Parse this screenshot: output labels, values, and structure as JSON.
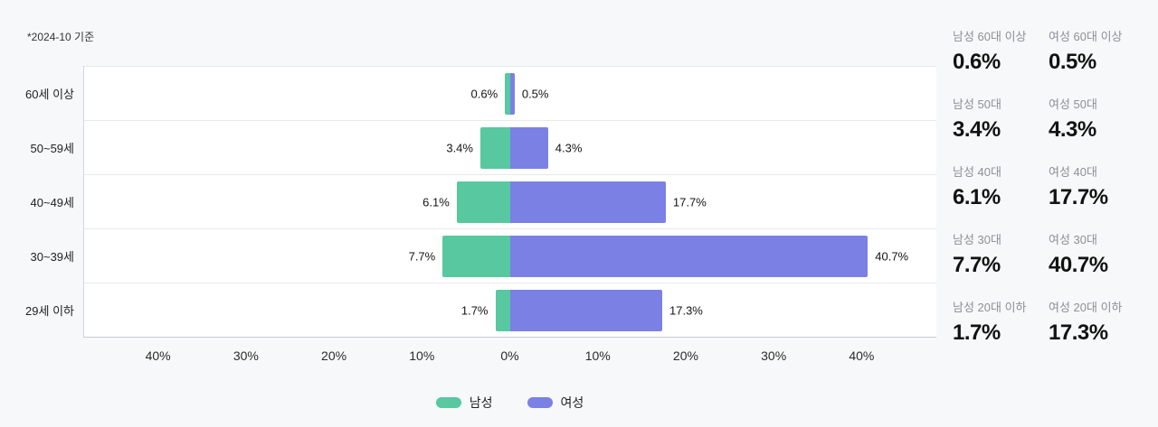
{
  "note": "*2024-10 기준",
  "chart_data": {
    "type": "bar",
    "orientation": "horizontal-diverging",
    "title": "",
    "categories": [
      "60세 이상",
      "50~59세",
      "40~49세",
      "30~39세",
      "29세 이하"
    ],
    "series": [
      {
        "name": "남성",
        "color": "#57c8a0",
        "values": [
          0.6,
          3.4,
          6.1,
          7.7,
          1.7
        ]
      },
      {
        "name": "여성",
        "color": "#7b80e5",
        "values": [
          0.5,
          4.3,
          17.7,
          40.7,
          17.3
        ]
      }
    ],
    "x_tick_values": [
      40,
      30,
      20,
      10,
      0,
      10,
      20,
      30,
      40
    ],
    "x_tick_labels": [
      "40%",
      "30%",
      "20%",
      "10%",
      "0%",
      "10%",
      "20%",
      "30%",
      "40%"
    ],
    "axis_max": 48.5,
    "value_suffix": "%",
    "grid": true,
    "legend_position": "bottom"
  },
  "stats_panel": {
    "rows": [
      {
        "male_label": "남성 60대 이상",
        "male_value": "0.6%",
        "female_label": "여성 60대 이상",
        "female_value": "0.5%"
      },
      {
        "male_label": "남성 50대",
        "male_value": "3.4%",
        "female_label": "여성 50대",
        "female_value": "4.3%"
      },
      {
        "male_label": "남성 40대",
        "male_value": "6.1%",
        "female_label": "여성 40대",
        "female_value": "17.7%"
      },
      {
        "male_label": "남성 30대",
        "male_value": "7.7%",
        "female_label": "여성 30대",
        "female_value": "40.7%"
      },
      {
        "male_label": "남성 20대 이하",
        "male_value": "1.7%",
        "female_label": "여성 20대 이하",
        "female_value": "17.3%"
      }
    ]
  },
  "colors": {
    "male": "#57c8a0",
    "female": "#7b80e5",
    "background": "#f7f8f9",
    "plot_background": "#ffffff",
    "gridline": "#e8e9eb",
    "axis_line": "#c6c9cd",
    "text": "#141414",
    "muted_text": "#8b9097"
  }
}
